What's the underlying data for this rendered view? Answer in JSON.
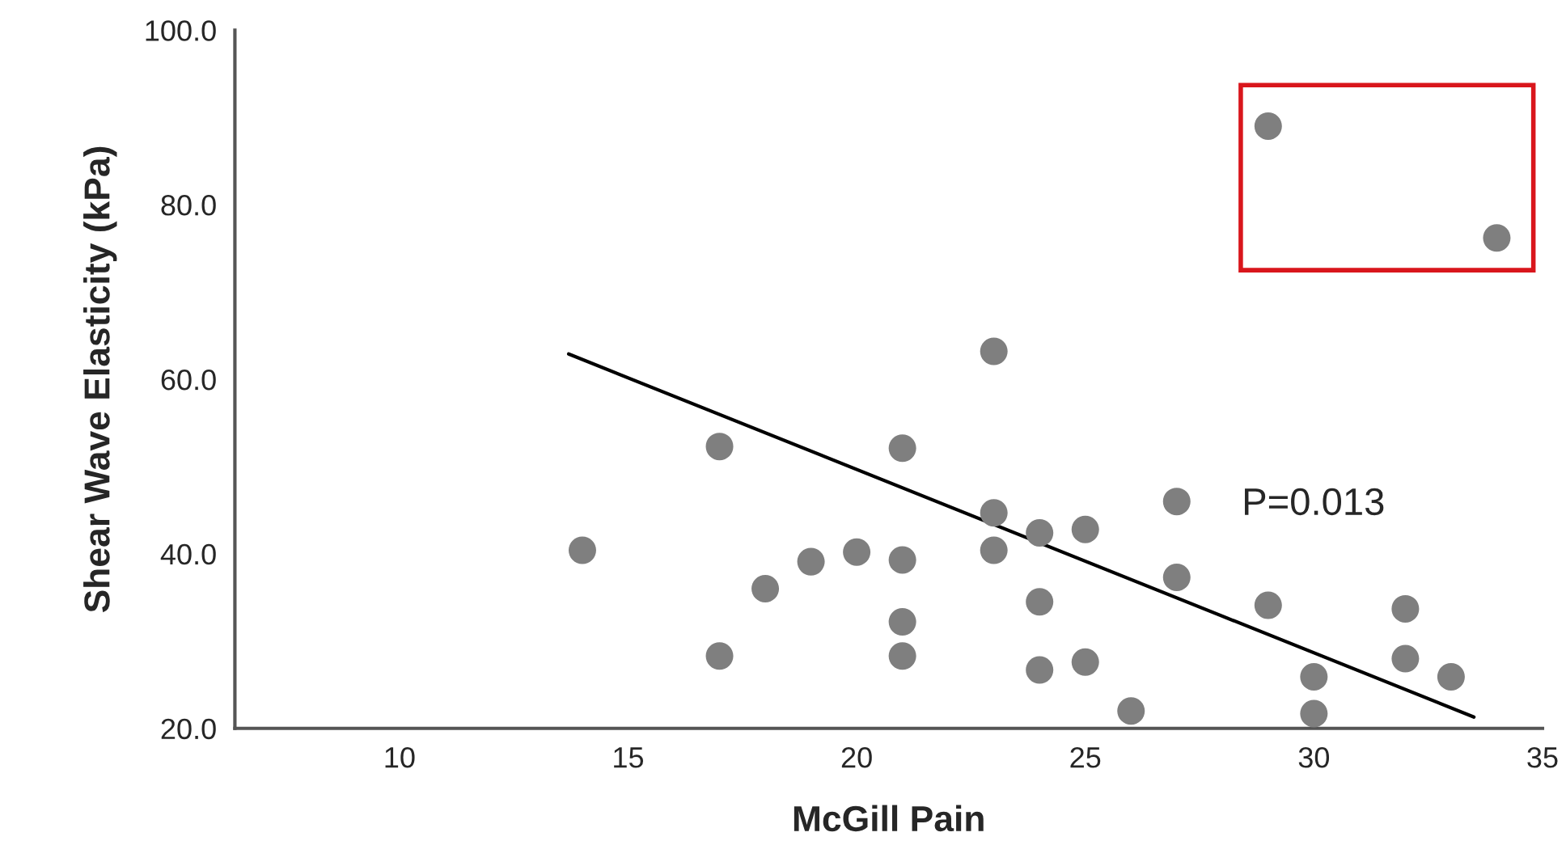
{
  "chart_data": {
    "type": "scatter",
    "xlabel": "McGill Pain",
    "ylabel": "Shear Wave Elasticity (kPa)",
    "series": [
      {
        "color": "#7f7f7f",
        "marker": "circle",
        "x": [
          14,
          17,
          17,
          18,
          19,
          20,
          21,
          21,
          21,
          21,
          23,
          23,
          23,
          24,
          24,
          24,
          25,
          25,
          26,
          27,
          27,
          29,
          29,
          30,
          30,
          32,
          32,
          33,
          34
        ],
        "values": [
          40.4,
          52.3,
          28.3,
          36.0,
          39.1,
          40.2,
          52.1,
          39.3,
          32.2,
          28.3,
          63.2,
          44.7,
          40.4,
          42.4,
          34.5,
          26.7,
          42.8,
          27.6,
          22.0,
          46.0,
          37.3,
          89.0,
          34.1,
          25.9,
          21.7,
          33.7,
          28.0,
          25.9,
          76.2
        ]
      },
      {
        "type": "line",
        "color": "#000000",
        "x": [
          13.7,
          33.5
        ],
        "values": [
          62.9,
          21.3
        ]
      }
    ],
    "annotations": [
      "P=0.013"
    ],
    "xlim": [
      6.4,
      35
    ],
    "xticks": [
      10,
      15,
      20,
      25,
      30,
      35
    ],
    "ylim": [
      20,
      100
    ],
    "yticks": [
      {
        "value": 20,
        "label": "20.0"
      },
      {
        "value": 40,
        "label": "40.0"
      },
      {
        "value": 60,
        "label": "60.0"
      },
      {
        "value": 80,
        "label": "80.0"
      },
      {
        "value": 100,
        "label": "100.0"
      }
    ],
    "grid": false,
    "legend": false
  }
}
